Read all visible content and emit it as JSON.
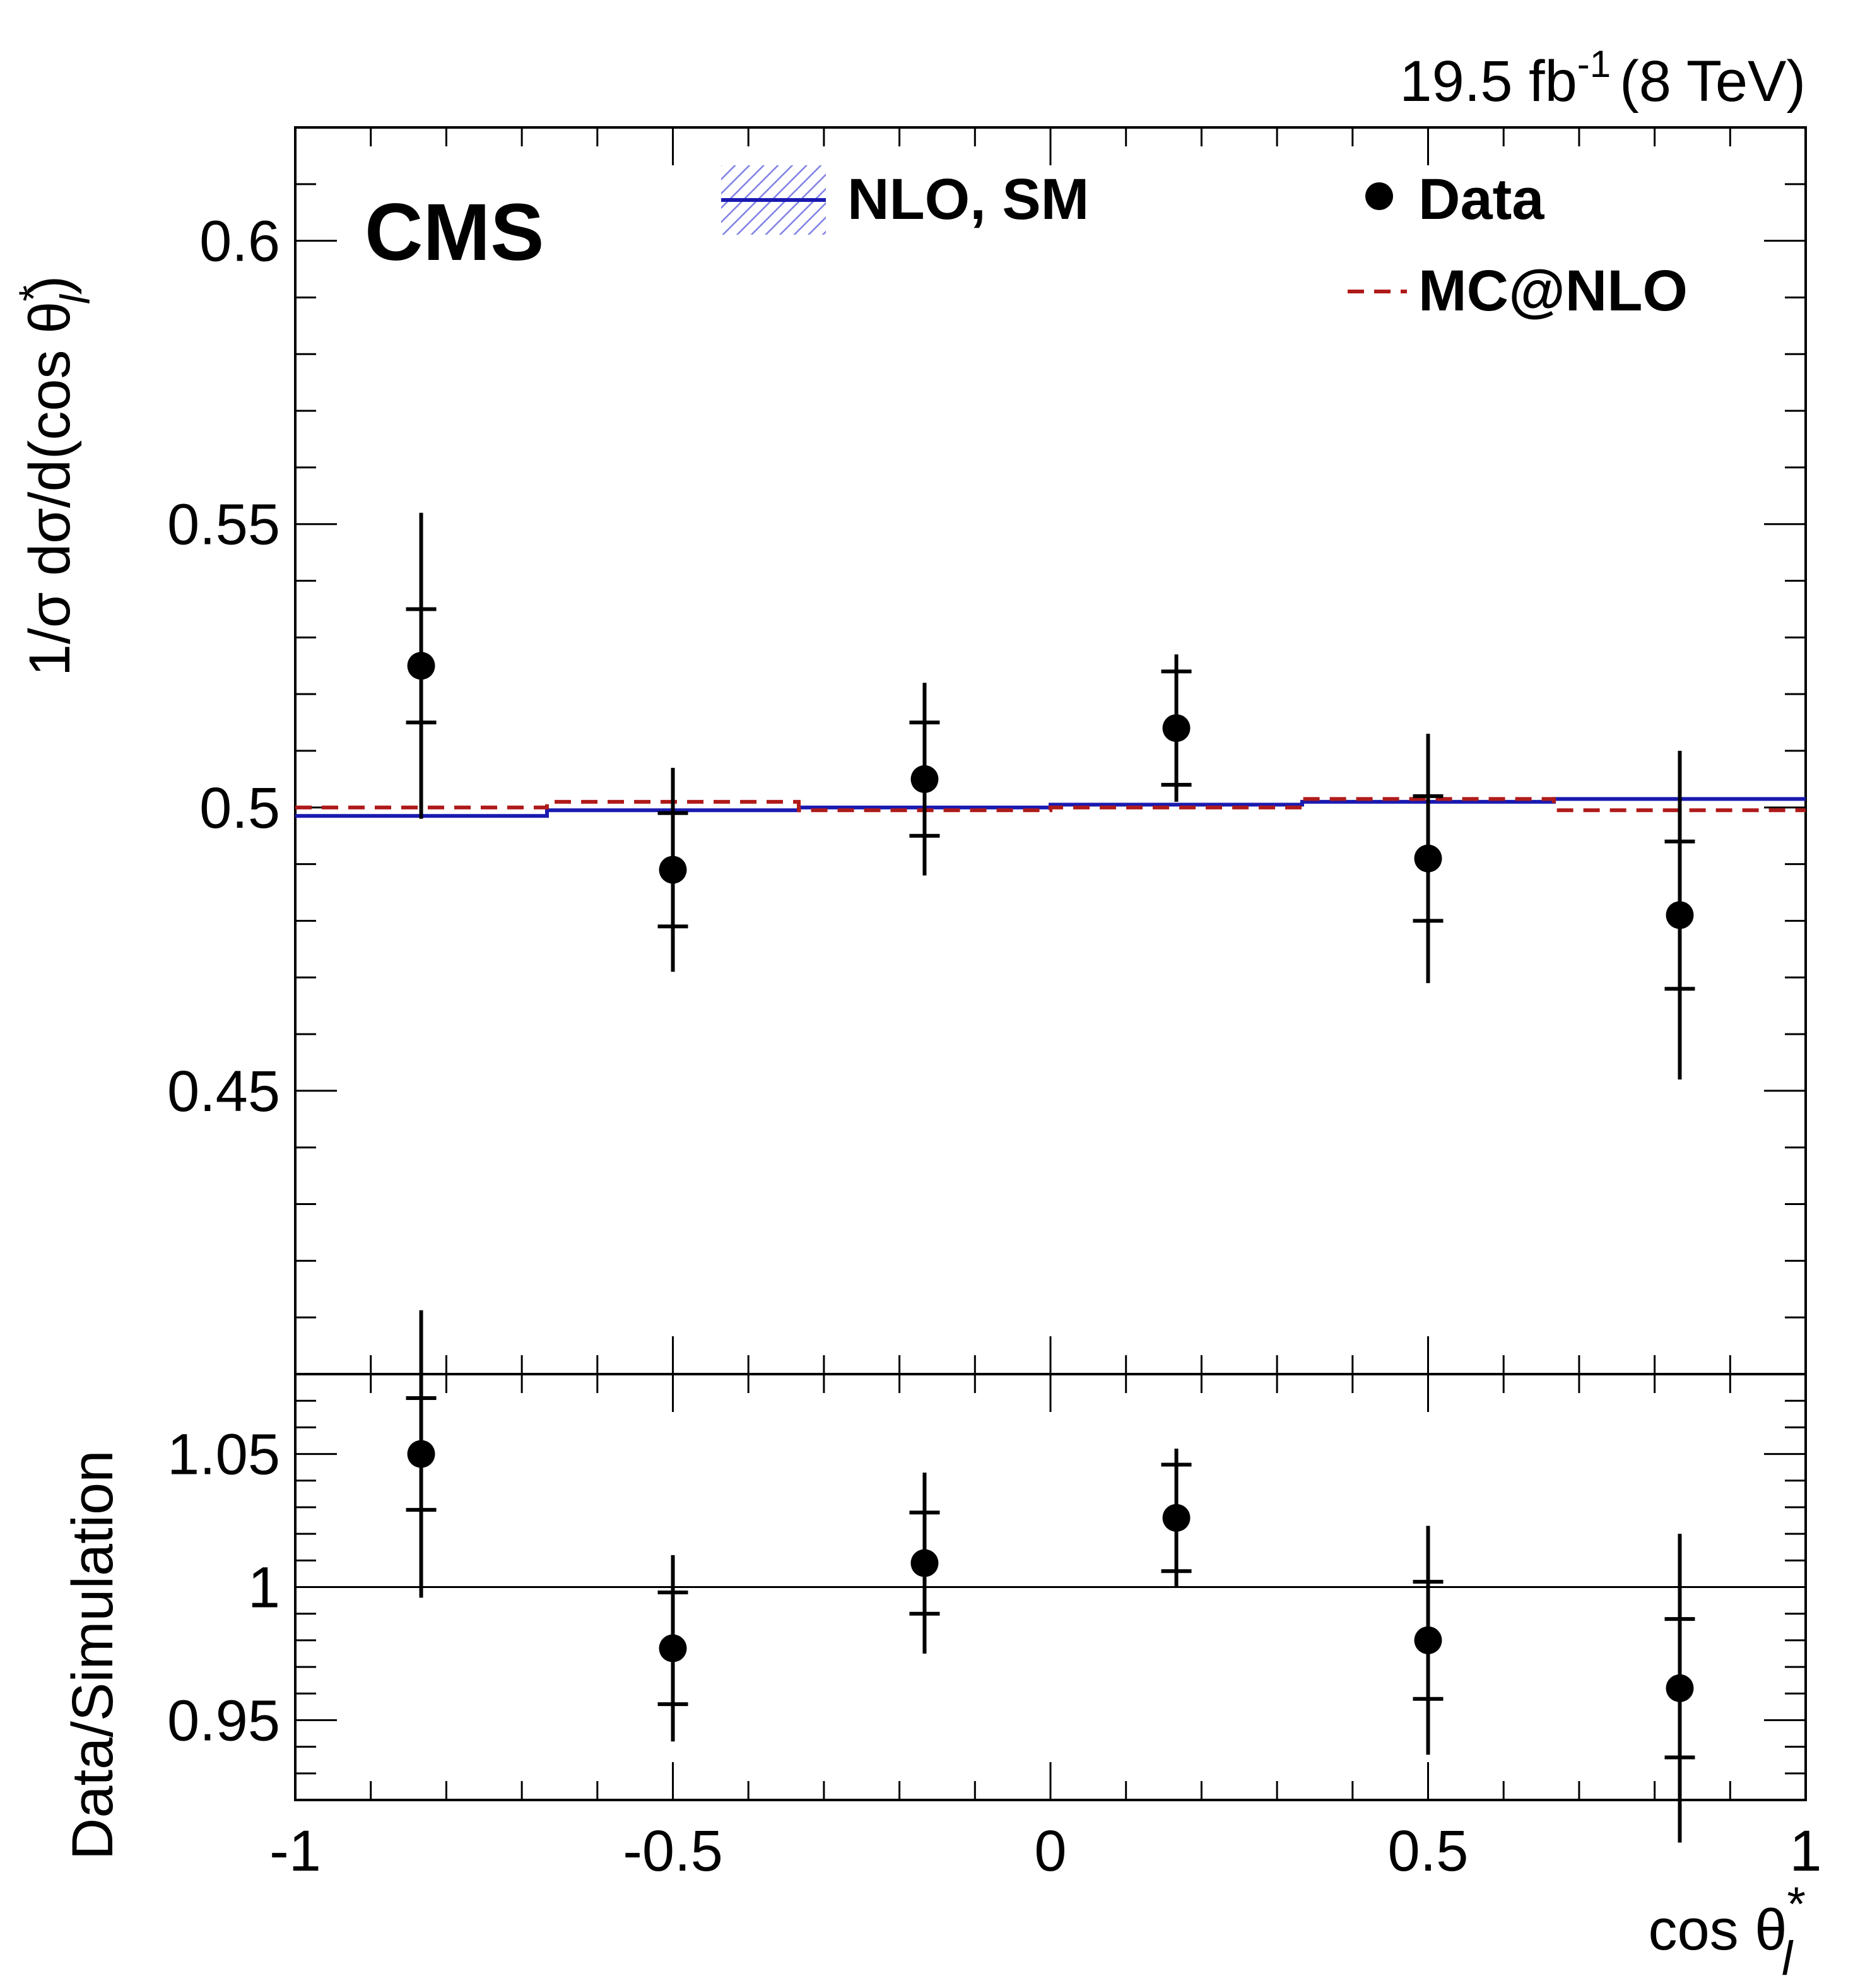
{
  "header": {
    "experiment": "CMS",
    "lumi": "19.5 fb",
    "lumi_exponent": "-1",
    "energy": "(8 TeV)"
  },
  "colors": {
    "data": "#000000",
    "nlo_sm": "#1a1ab0",
    "nlo_sm_band": "#8080e6",
    "mcatnlo": "#b01a1a"
  },
  "legend": {
    "nlo_sm": "NLO, SM",
    "data": "Data",
    "mcatnlo": "MC@NLO"
  },
  "chart_data": [
    {
      "type": "line",
      "panel": "main",
      "title": "",
      "ylabel_prefix": "1/σ dσ/d(cos θ",
      "ylabel_sup": "*",
      "ylabel_sub": "l",
      "ylabel_suffix": ")",
      "xlim": [
        -1,
        1
      ],
      "ylim": [
        0.4,
        0.62
      ],
      "yticks": [
        0.45,
        0.5,
        0.55,
        0.6
      ],
      "ytick_labels": [
        "0.45",
        "0.5",
        "0.55",
        "0.6"
      ],
      "bin_edges": [
        -1,
        -0.6667,
        -0.3333,
        0,
        0.3333,
        0.6667,
        1
      ],
      "series": [
        {
          "name": "Data",
          "style": "points",
          "x": [
            -0.8333,
            -0.5,
            -0.1667,
            0.1667,
            0.5,
            0.8333
          ],
          "y": [
            0.525,
            0.489,
            0.505,
            0.514,
            0.491,
            0.481
          ],
          "err_stat": [
            0.01,
            0.01,
            0.01,
            0.01,
            0.011,
            0.013
          ],
          "err_total": [
            0.027,
            0.018,
            0.017,
            0.013,
            0.022,
            0.029
          ]
        },
        {
          "name": "NLO, SM",
          "style": "step",
          "values": [
            0.4985,
            0.4995,
            0.5,
            0.5005,
            0.501,
            0.5015
          ]
        },
        {
          "name": "MC@NLO",
          "style": "dashed-step",
          "values": [
            0.5,
            0.501,
            0.4995,
            0.5,
            0.5015,
            0.4995
          ]
        }
      ]
    },
    {
      "type": "line",
      "panel": "ratio",
      "ylabel": "Data/Simulation",
      "xlabel_prefix": "cos θ",
      "xlabel_sup": "*",
      "xlabel_sub": "l",
      "xlim": [
        -1,
        1
      ],
      "ylim": [
        0.92,
        1.08
      ],
      "xticks": [
        -1,
        -0.5,
        0,
        0.5,
        1
      ],
      "xtick_labels": [
        "-1",
        "-0.5",
        "0",
        "0.5",
        "1"
      ],
      "yticks": [
        0.95,
        1,
        1.05
      ],
      "ytick_labels": [
        "0.95",
        "1",
        "1.05"
      ],
      "reference_line": 1,
      "series": [
        {
          "name": "Data",
          "style": "points",
          "x": [
            -0.8333,
            -0.5,
            -0.1667,
            0.1667,
            0.5,
            0.8333
          ],
          "y": [
            1.05,
            0.977,
            1.009,
            1.026,
            0.98,
            0.962
          ],
          "err_stat": [
            0.021,
            0.021,
            0.019,
            0.02,
            0.022,
            0.026
          ],
          "err_total": [
            0.054,
            0.035,
            0.034,
            0.026,
            0.043,
            0.058
          ]
        }
      ]
    }
  ]
}
